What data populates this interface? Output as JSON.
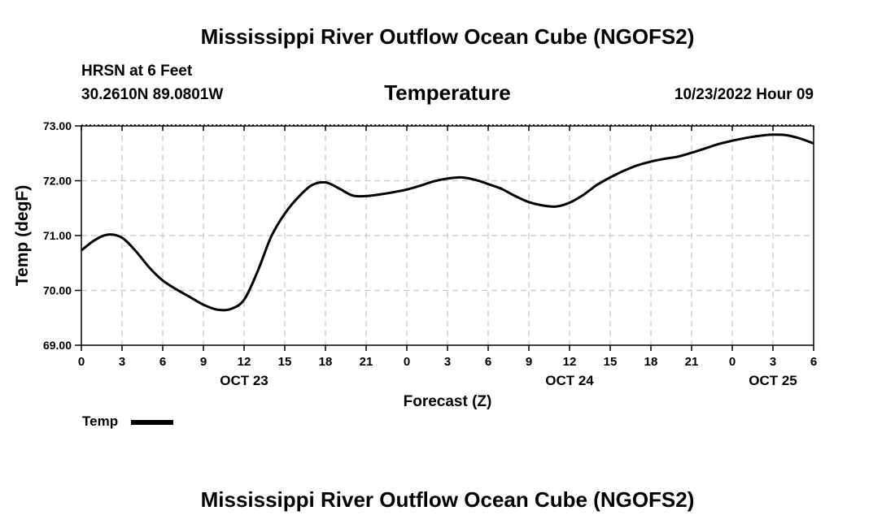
{
  "page": {
    "title": "Mississippi River Outflow Ocean Cube (NGOFS2)",
    "footer_title": "Mississippi River Outflow Ocean Cube (NGOFS2)",
    "station": "HRSN at 6 Feet",
    "coords": "30.2610N  89.0801W",
    "variable": "Temperature",
    "datetime": "10/23/2022 Hour 09"
  },
  "chart_data": {
    "type": "line",
    "title": "Temperature",
    "xlabel": "Forecast (Z)",
    "ylabel": "Temp (degF)",
    "ylim": [
      69.0,
      73.0
    ],
    "xlim": [
      0,
      54
    ],
    "grid": true,
    "yticks": [
      "69.00",
      "70.00",
      "71.00",
      "72.00",
      "73.00"
    ],
    "xtick_labels": [
      "0",
      "3",
      "6",
      "9",
      "12",
      "15",
      "18",
      "21",
      "0",
      "3",
      "6",
      "9",
      "12",
      "15",
      "18",
      "21",
      "0",
      "3",
      "6"
    ],
    "date_labels": [
      {
        "text": "OCT 23",
        "hour": 12
      },
      {
        "text": "OCT 24",
        "hour": 36
      },
      {
        "text": "OCT 25",
        "hour": 51
      }
    ],
    "legend": {
      "position": "bottom-left",
      "entries": [
        "Temp"
      ]
    },
    "series": [
      {
        "name": "Temp",
        "color": "#000000",
        "x": [
          0,
          1,
          2,
          3,
          4,
          5,
          6,
          7,
          8,
          9,
          10,
          11,
          12,
          13,
          14,
          15,
          16,
          17,
          18,
          19,
          20,
          21,
          22,
          23,
          24,
          25,
          26,
          27,
          28,
          29,
          30,
          31,
          32,
          33,
          34,
          35,
          36,
          37,
          38,
          39,
          40,
          41,
          42,
          43,
          44,
          45,
          46,
          47,
          48,
          49,
          50,
          51,
          52,
          53,
          54
        ],
        "y": [
          70.73,
          70.92,
          71.02,
          70.96,
          70.72,
          70.42,
          70.18,
          70.02,
          69.88,
          69.74,
          69.65,
          69.66,
          69.83,
          70.35,
          70.98,
          71.4,
          71.7,
          71.92,
          71.97,
          71.86,
          71.73,
          71.72,
          71.75,
          71.79,
          71.84,
          71.91,
          71.99,
          72.04,
          72.06,
          72.02,
          71.94,
          71.85,
          71.72,
          71.61,
          71.55,
          71.53,
          71.6,
          71.74,
          71.92,
          72.06,
          72.18,
          72.28,
          72.35,
          72.4,
          72.44,
          72.51,
          72.59,
          72.67,
          72.73,
          72.78,
          72.82,
          72.84,
          72.83,
          72.77,
          72.68
        ]
      }
    ]
  }
}
